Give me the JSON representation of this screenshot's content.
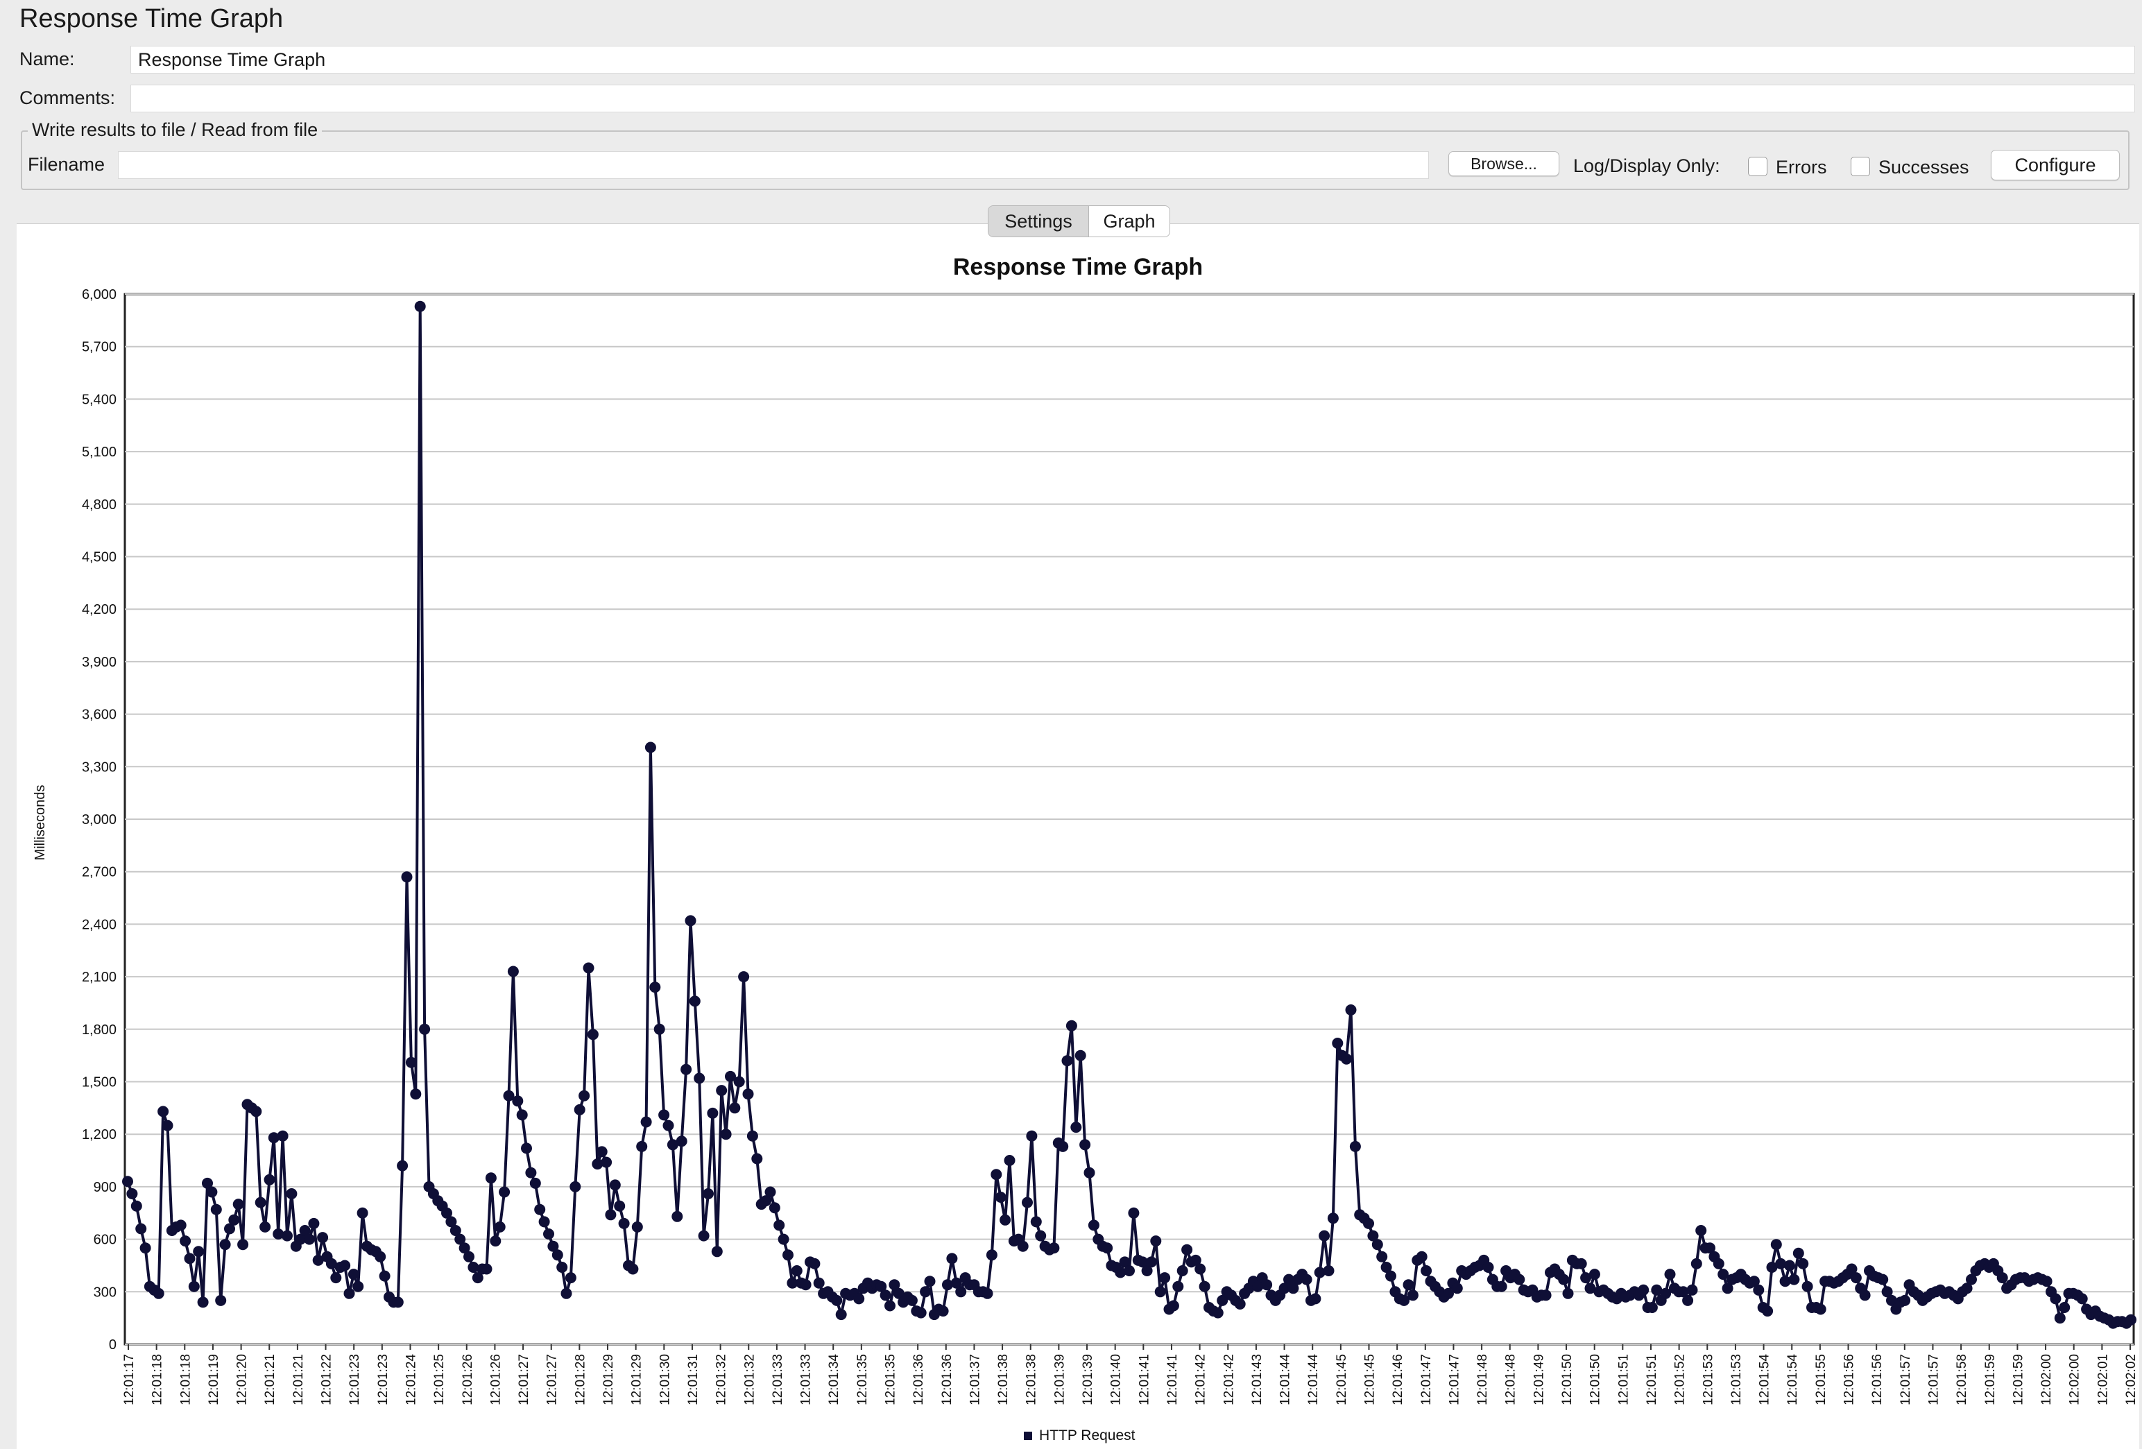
{
  "window": {
    "title": "Response Time Graph"
  },
  "form": {
    "name_label": "Name:",
    "name_value": "Response Time Graph",
    "comments_label": "Comments:",
    "comments_value": ""
  },
  "file_section": {
    "legend": "Write results to file / Read from file",
    "filename_label": "Filename",
    "filename_value": "",
    "browse_label": "Browse...",
    "log_display_label": "Log/Display Only:",
    "errors_label": "Errors",
    "errors_checked": false,
    "successes_label": "Successes",
    "successes_checked": false,
    "configure_label": "Configure"
  },
  "tabs": [
    {
      "label": "Settings",
      "selected": false
    },
    {
      "label": "Graph",
      "selected": true
    }
  ],
  "chart_data": {
    "type": "line",
    "title": "Response Time Graph",
    "ylabel": "Milliseconds",
    "xlabel": "",
    "ylim": [
      0,
      6000
    ],
    "y_ticks": [
      0,
      300,
      600,
      900,
      1200,
      1500,
      1800,
      2100,
      2400,
      2700,
      3000,
      3300,
      3600,
      3900,
      4200,
      4500,
      4800,
      5100,
      5400,
      5700,
      6000
    ],
    "x_tick_labels": [
      "12:01:17",
      "12:01:18",
      "12:01:18",
      "12:01:19",
      "12:01:20",
      "12:01:21",
      "12:01:21",
      "12:01:22",
      "12:01:23",
      "12:01:23",
      "12:01:24",
      "12:01:25",
      "12:01:26",
      "12:01:26",
      "12:01:27",
      "12:01:27",
      "12:01:28",
      "12:01:29",
      "12:01:29",
      "12:01:30",
      "12:01:31",
      "12:01:32",
      "12:01:32",
      "12:01:33",
      "12:01:33",
      "12:01:34",
      "12:01:35",
      "12:01:35",
      "12:01:36",
      "12:01:36",
      "12:01:37",
      "12:01:38",
      "12:01:38",
      "12:01:39",
      "12:01:39",
      "12:01:40",
      "12:01:41",
      "12:01:41",
      "12:01:42",
      "12:01:42",
      "12:01:43",
      "12:01:44",
      "12:01:44",
      "12:01:45",
      "12:01:45",
      "12:01:46",
      "12:01:47",
      "12:01:47",
      "12:01:48",
      "12:01:48",
      "12:01:49",
      "12:01:50",
      "12:01:50",
      "12:01:51",
      "12:01:51",
      "12:01:52",
      "12:01:53",
      "12:01:53",
      "12:01:54",
      "12:01:54",
      "12:01:55",
      "12:01:56",
      "12:01:56",
      "12:01:57",
      "12:01:57",
      "12:01:58",
      "12:01:59",
      "12:01:59",
      "12:02:00",
      "12:02:00",
      "12:02:01",
      "12:02:02"
    ],
    "grid": true,
    "legend_position": "bottom-center",
    "series": [
      {
        "name": "HTTP Request",
        "color": "#0f0f36",
        "values": [
          930,
          860,
          790,
          660,
          550,
          330,
          310,
          290,
          1330,
          1250,
          650,
          670,
          680,
          590,
          490,
          330,
          530,
          240,
          920,
          870,
          770,
          250,
          570,
          660,
          710,
          800,
          570,
          1370,
          1350,
          1330,
          810,
          670,
          940,
          1180,
          630,
          1190,
          620,
          860,
          560,
          600,
          650,
          600,
          690,
          480,
          610,
          500,
          460,
          380,
          440,
          450,
          290,
          400,
          330,
          750,
          560,
          540,
          530,
          500,
          390,
          270,
          240,
          240,
          1020,
          2670,
          1610,
          1430,
          5930,
          1800,
          900,
          860,
          820,
          790,
          750,
          700,
          650,
          600,
          550,
          500,
          440,
          380,
          430,
          430,
          950,
          590,
          670,
          870,
          1420,
          2130,
          1390,
          1310,
          1120,
          980,
          920,
          770,
          700,
          630,
          560,
          510,
          440,
          290,
          380,
          900,
          1340,
          1420,
          2150,
          1770,
          1030,
          1100,
          1040,
          740,
          910,
          790,
          690,
          450,
          430,
          670,
          1130,
          1270,
          3410,
          2040,
          1800,
          1310,
          1250,
          1140,
          730,
          1160,
          1570,
          2420,
          1960,
          1520,
          620,
          860,
          1320,
          530,
          1450,
          1200,
          1530,
          1350,
          1500,
          2100,
          1430,
          1190,
          1060,
          800,
          820,
          870,
          780,
          680,
          600,
          510,
          350,
          420,
          350,
          340,
          470,
          460,
          350,
          290,
          300,
          270,
          250,
          170,
          290,
          280,
          290,
          260,
          320,
          350,
          320,
          340,
          330,
          280,
          220,
          340,
          290,
          240,
          270,
          250,
          190,
          180,
          300,
          360,
          170,
          200,
          190,
          340,
          490,
          350,
          300,
          380,
          340,
          340,
          300,
          300,
          290,
          510,
          970,
          840,
          710,
          1050,
          590,
          600,
          560,
          810,
          1190,
          700,
          620,
          560,
          540,
          550,
          1150,
          1130,
          1620,
          1820,
          1240,
          1650,
          1140,
          980,
          680,
          600,
          560,
          550,
          450,
          440,
          410,
          470,
          420,
          750,
          480,
          470,
          420,
          470,
          590,
          300,
          380,
          200,
          220,
          330,
          420,
          540,
          470,
          480,
          430,
          330,
          210,
          190,
          180,
          250,
          300,
          280,
          250,
          230,
          290,
          320,
          360,
          330,
          380,
          340,
          280,
          250,
          280,
          320,
          370,
          320,
          370,
          400,
          370,
          250,
          260,
          410,
          620,
          420,
          720,
          1720,
          1650,
          1630,
          1910,
          1130,
          740,
          720,
          690,
          620,
          570,
          500,
          440,
          390,
          300,
          260,
          250,
          340,
          280,
          480,
          500,
          420,
          360,
          330,
          300,
          270,
          290,
          350,
          320,
          420,
          400,
          420,
          440,
          450,
          480,
          440,
          370,
          330,
          330,
          420,
          380,
          400,
          370,
          310,
          300,
          310,
          270,
          280,
          280,
          410,
          430,
          400,
          370,
          290,
          480,
          460,
          460,
          380,
          320,
          400,
          300,
          310,
          290,
          270,
          260,
          290,
          270,
          280,
          300,
          280,
          310,
          210,
          210,
          310,
          250,
          290,
          400,
          320,
          300,
          300,
          250,
          310,
          460,
          650,
          550,
          550,
          500,
          460,
          400,
          320,
          370,
          380,
          400,
          370,
          350,
          360,
          310,
          210,
          190,
          440,
          570,
          460,
          360,
          450,
          370,
          520,
          460,
          330,
          210,
          210,
          200,
          360,
          360,
          350,
          360,
          380,
          400,
          430,
          380,
          320,
          280,
          420,
          390,
          380,
          370,
          300,
          250,
          200,
          240,
          250,
          340,
          300,
          280,
          250,
          270,
          290,
          300,
          310,
          290,
          300,
          280,
          260,
          300,
          320,
          370,
          420,
          450,
          460,
          440,
          460,
          420,
          380,
          320,
          340,
          370,
          380,
          380,
          360,
          370,
          380,
          370,
          360,
          300,
          260,
          150,
          210,
          290,
          290,
          280,
          260,
          200,
          170,
          190,
          160,
          150,
          140,
          120,
          130,
          130,
          120,
          140
        ]
      }
    ]
  }
}
